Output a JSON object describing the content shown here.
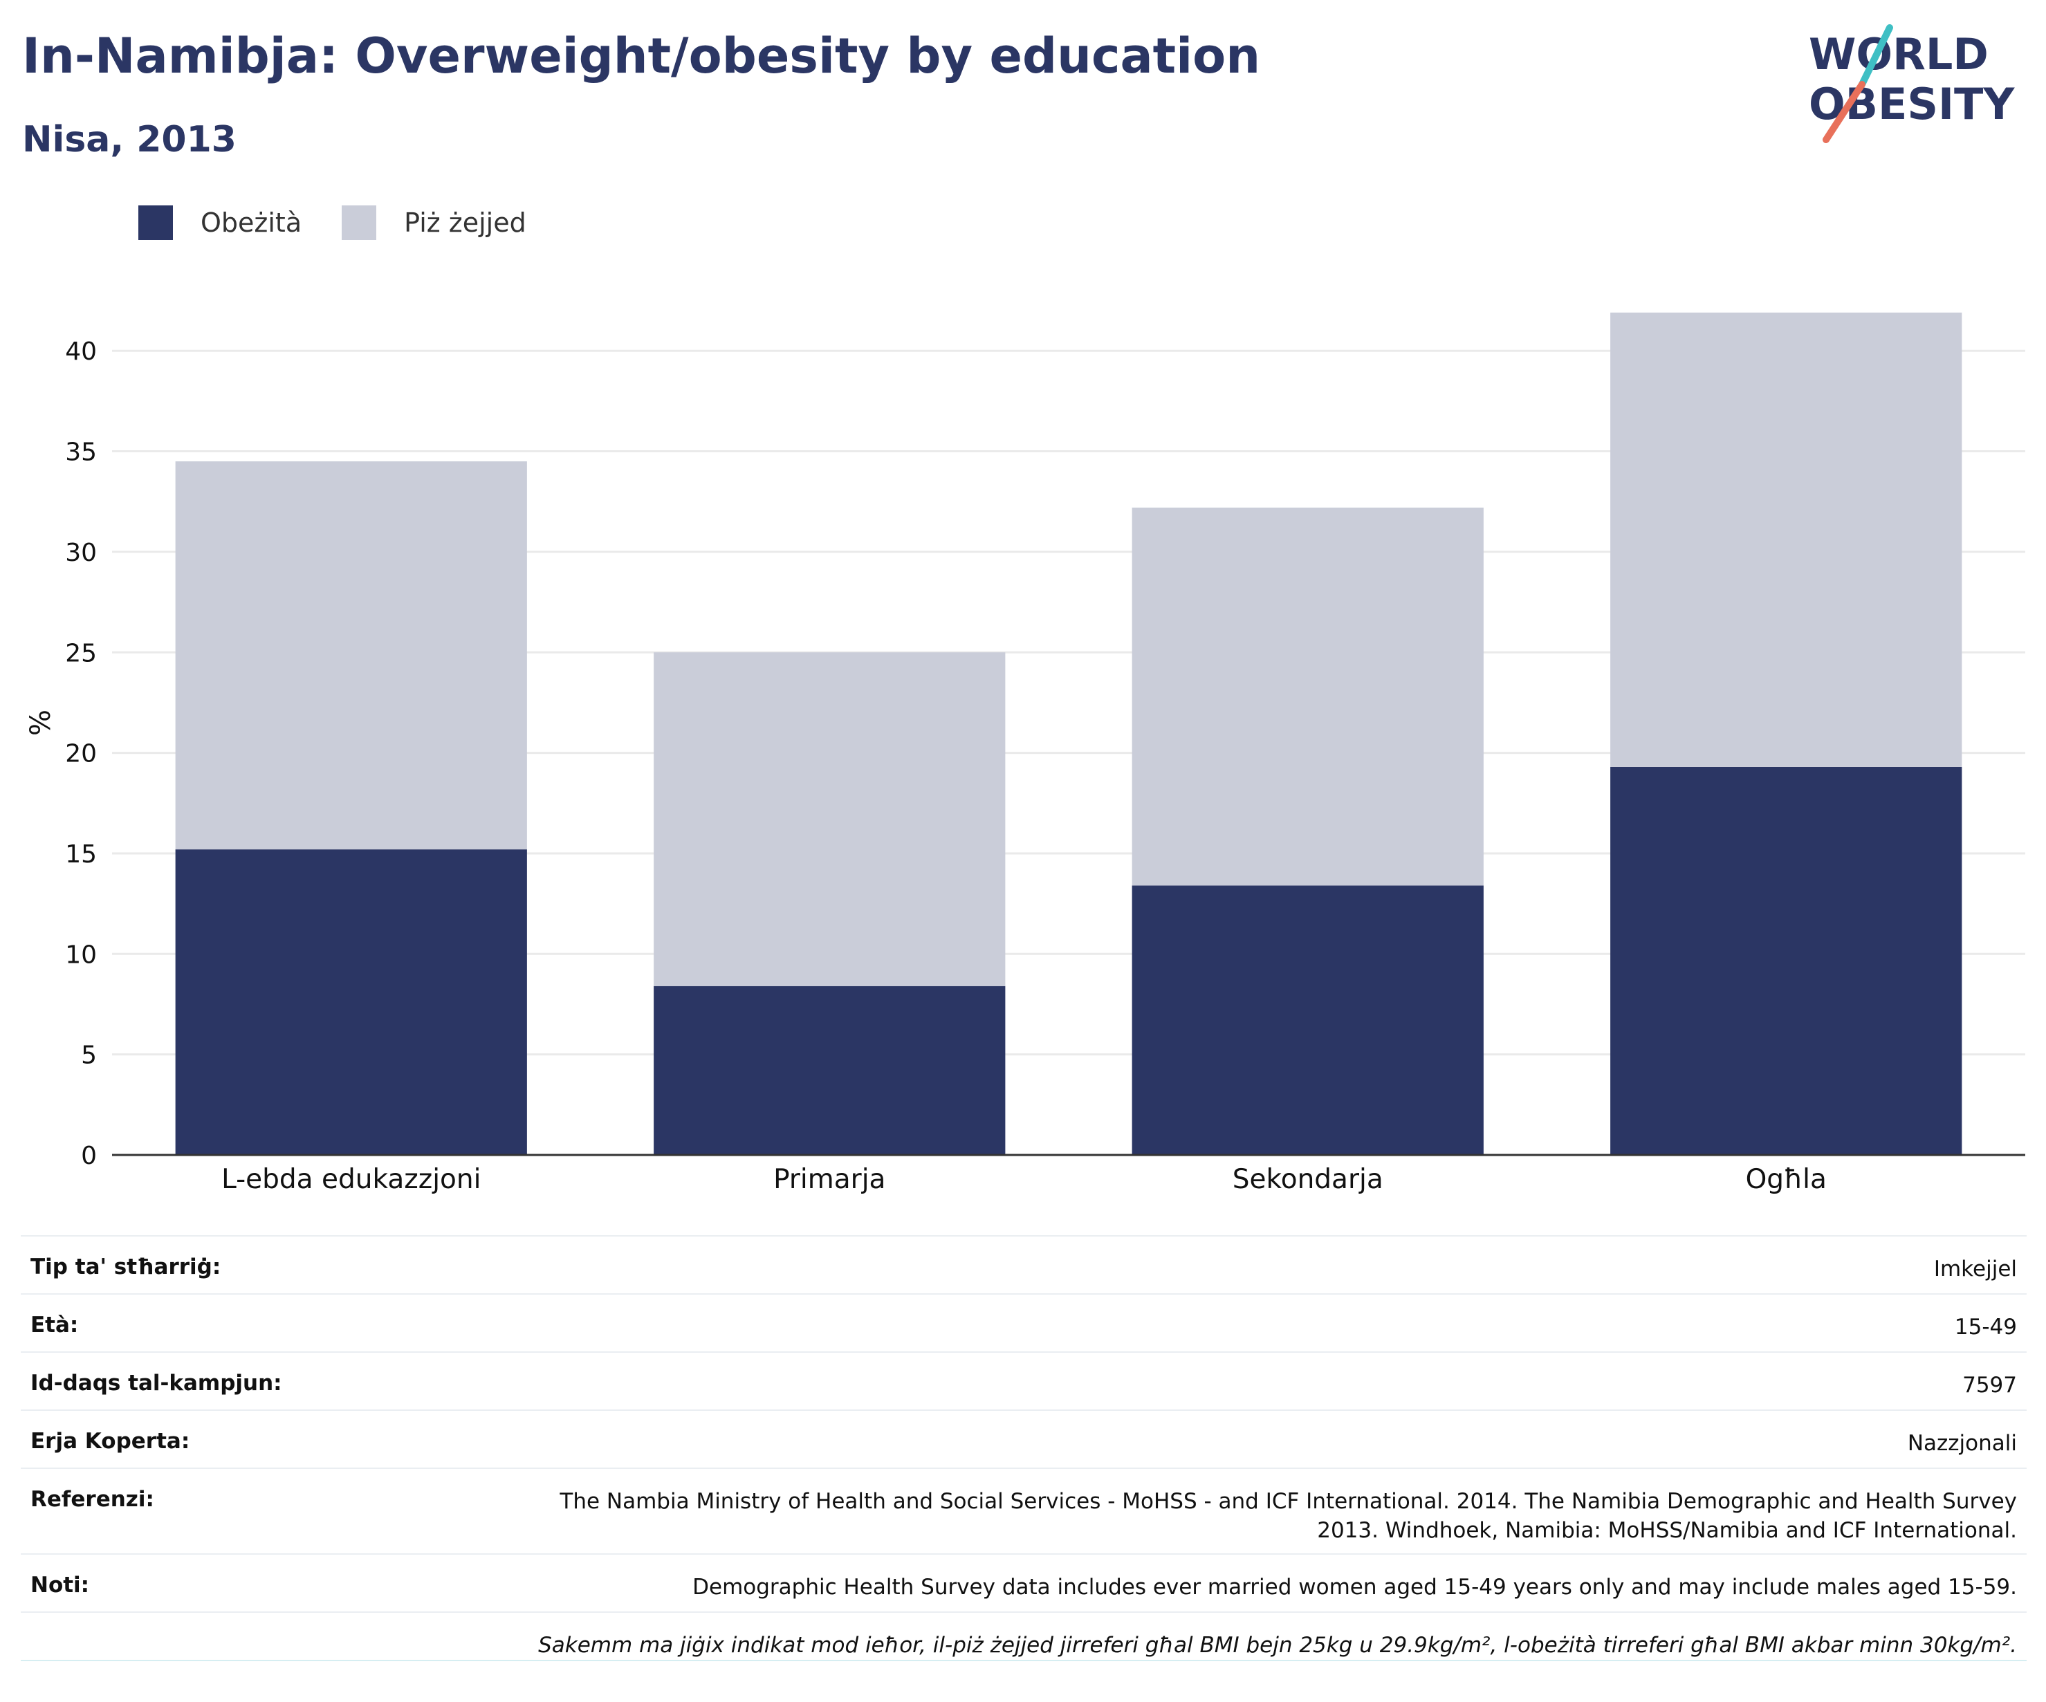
{
  "header": {
    "title": "In-Namibja: Overweight/obesity by education",
    "subtitle": "Nisa, 2013"
  },
  "logo": {
    "line1": "WORLD",
    "line2": "OBESITY",
    "colors": {
      "text": "#2b3664",
      "slash_top": "#3fbfc4",
      "slash_bottom": "#e8705a"
    }
  },
  "colors": {
    "obesity": "#2b3664",
    "overweight": "#cacdd9",
    "grid": "#eaeaea",
    "axis": "#333333"
  },
  "chart_data": {
    "type": "bar",
    "stacked": true,
    "categories": [
      "L-ebda edukazzjoni",
      "Primarja",
      "Sekondarja",
      "Ogħla"
    ],
    "series": [
      {
        "name": "Obeżità",
        "values": [
          15.2,
          8.4,
          13.4,
          19.3
        ]
      },
      {
        "name": "Piż żejjed",
        "values": [
          19.3,
          16.6,
          18.8,
          22.6
        ]
      }
    ],
    "ylabel": "%",
    "ylim": [
      0,
      43
    ],
    "yticks": [
      0,
      5,
      10,
      15,
      20,
      25,
      30,
      35,
      40
    ],
    "grid": true,
    "legend": "top-left"
  },
  "meta": {
    "rows": [
      {
        "label": "Tip ta' stħarriġ:",
        "value": "Imkejjel"
      },
      {
        "label": "Età:",
        "value": "15-49"
      },
      {
        "label": "Id-daqs tal-kampjun:",
        "value": "7597"
      },
      {
        "label": "Erja Koperta:",
        "value": "Nazzjonali"
      },
      {
        "label": "Referenzi:",
        "value": "The Nambia Ministry of Health and Social Services - MoHSS - and ICF International. 2014. The Namibia Demographic and Health Survey 2013. Windhoek, Namibia: MoHSS/Namibia and ICF International."
      },
      {
        "label": "Noti:",
        "value": "Demographic Health Survey data includes ever married women aged 15-49 years only and may include males aged 15-59."
      }
    ],
    "note": "Sakemm ma jiġix indikat mod ieħor, il-piż żejjed jirreferi għal BMI bejn 25kg u 29.9kg/m², l-obeżità tirreferi għal BMI akbar minn 30kg/m²."
  }
}
